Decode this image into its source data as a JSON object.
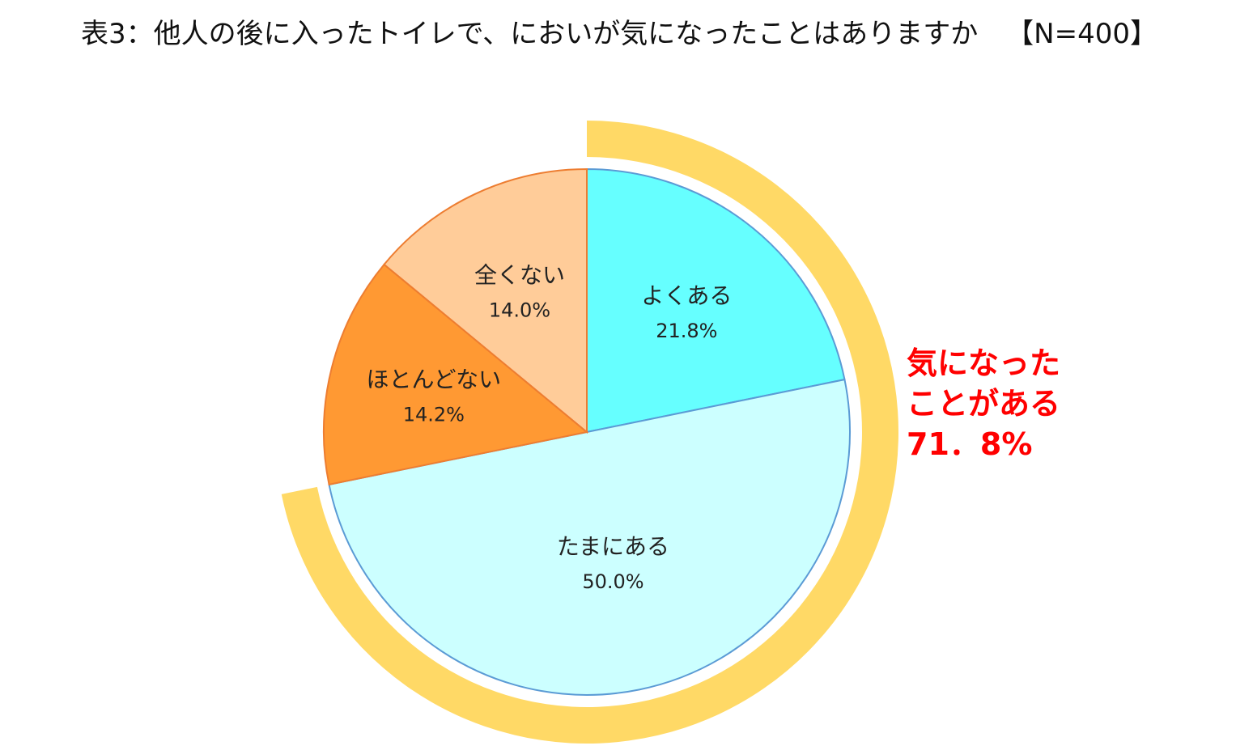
{
  "title": "表3：他人の後に入ったトイレで、においが気になったことはありますか",
  "sample_size": "【N=400】",
  "chart_data": {
    "type": "pie",
    "title": "表3：他人の後に入ったトイレで、においが気になったことはありますか",
    "sample_size": "【N=400】",
    "start": "12 o'clock, clockwise",
    "slices": [
      {
        "label": "よくある",
        "value": 21.8,
        "value_label": "21.8%",
        "color": "#66ffff",
        "stroke": "#5b9bd5"
      },
      {
        "label": "たまにある",
        "value": 50.0,
        "value_label": "50.0%",
        "color": "#ccffff",
        "stroke": "#5b9bd5"
      },
      {
        "label": "ほとんどない",
        "value": 14.2,
        "value_label": "14.2%",
        "color": "#ff9933",
        "stroke": "#ed7d31"
      },
      {
        "label": "全くない",
        "value": 14.0,
        "value_label": "14.0%",
        "color": "#ffcc99",
        "stroke": "#ed7d31"
      }
    ],
    "highlight_arc": {
      "covers": [
        "よくある",
        "たまにある"
      ],
      "color": "#ffd966"
    },
    "callout": {
      "lines": [
        "気になった",
        "ことがある",
        "71．8%"
      ],
      "color": "#ff0000"
    }
  }
}
